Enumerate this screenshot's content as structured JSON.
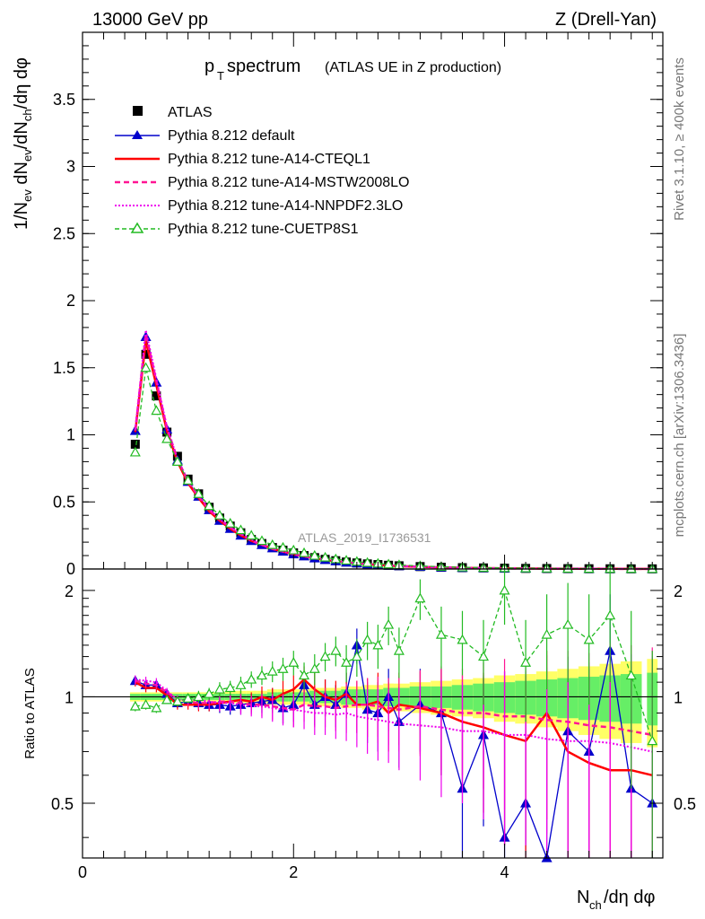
{
  "header": {
    "left": "13000 GeV pp",
    "right": "Z (Drell-Yan)"
  },
  "side_labels": {
    "rivet": "Rivet 3.1.10, ≥ 400k events",
    "mcplots": "mcplots.cern.ch [arXiv:1306.3436]"
  },
  "watermark": "ATLAS_2019_I1736531",
  "colors": {
    "atlas": "#000000",
    "default": "#0000cc",
    "cteql1": "#ff0000",
    "mstw": "#ff1493",
    "nnpdf": "#ee00ee",
    "cuetp": "#22bb22",
    "band_yellow": "#ffff66",
    "band_green": "#66ee66"
  },
  "chart_data": [
    {
      "type": "line",
      "title_main": "p",
      "title_sub": "T",
      "title_rest": " spectrum",
      "title_note": "(ATLAS UE in Z production)",
      "xlabel": "N",
      "xlabel_sub": "ch",
      "xlabel_rest": "/dη dφ",
      "ylabel": "1/N_ev dN_ev/dN_ch/dη dφ",
      "xlim": [
        0,
        5.5
      ],
      "ylim": [
        0,
        4.0
      ],
      "yticks": [
        "0",
        "0.5",
        "1",
        "1.5",
        "2",
        "2.5",
        "3",
        "3.5"
      ],
      "xticks": [
        "0",
        "2",
        "4"
      ],
      "legend": [
        "ATLAS",
        "Pythia 8.212 default",
        "Pythia 8.212 tune-A14-CTEQL1",
        "Pythia 8.212 tune-A14-MSTW2008LO",
        "Pythia 8.212 tune-A14-NNPDF2.3LO",
        "Pythia 8.212 tune-CUETP8S1"
      ],
      "x": [
        0.5,
        0.6,
        0.7,
        0.8,
        0.9,
        1.0,
        1.1,
        1.2,
        1.3,
        1.4,
        1.5,
        1.6,
        1.7,
        1.8,
        1.9,
        2.0,
        2.1,
        2.2,
        2.3,
        2.4,
        2.5,
        2.6,
        2.7,
        2.8,
        2.9,
        3.0,
        3.2,
        3.4,
        3.6,
        3.8,
        4.0,
        4.2,
        4.4,
        4.6,
        4.8,
        5.0,
        5.2,
        5.4
      ],
      "series": [
        {
          "name": "ATLAS",
          "values": [
            0.93,
            1.6,
            1.29,
            1.02,
            0.84,
            0.67,
            0.56,
            0.46,
            0.38,
            0.32,
            0.27,
            0.22,
            0.19,
            0.16,
            0.14,
            0.12,
            0.1,
            0.085,
            0.072,
            0.062,
            0.052,
            0.045,
            0.038,
            0.033,
            0.028,
            0.024,
            0.018,
            0.013,
            0.01,
            0.008,
            0.006,
            0.0045,
            0.0035,
            0.0027,
            0.002,
            0.0016,
            0.0012,
            0.001
          ]
        },
        {
          "name": "Pythia 8.212 default",
          "values": [
            1.03,
            1.73,
            1.39,
            1.04,
            0.81,
            0.65,
            0.54,
            0.44,
            0.36,
            0.3,
            0.25,
            0.21,
            0.18,
            0.155,
            0.13,
            0.11,
            0.095,
            0.08,
            0.068,
            0.058,
            0.049,
            0.043,
            0.036,
            0.031,
            0.026,
            0.022,
            0.017,
            0.012,
            0.009,
            0.007,
            0.005,
            0.004,
            0.003,
            0.0024,
            0.0018,
            0.0014,
            0.001,
            0.0008
          ]
        },
        {
          "name": "Pythia 8.212 tune-A14-CTEQL1",
          "values": [
            1.02,
            1.7,
            1.37,
            1.03,
            0.8,
            0.64,
            0.53,
            0.43,
            0.36,
            0.3,
            0.25,
            0.21,
            0.18,
            0.15,
            0.13,
            0.11,
            0.094,
            0.08,
            0.067,
            0.057,
            0.048,
            0.042,
            0.035,
            0.03,
            0.025,
            0.021,
            0.016,
            0.012,
            0.009,
            0.007,
            0.005,
            0.0038,
            0.003,
            0.0023,
            0.0017,
            0.0013,
            0.001,
            0.0008
          ]
        },
        {
          "name": "Pythia 8.212 tune-A14-MSTW2008LO",
          "values": [
            1.03,
            1.75,
            1.4,
            1.05,
            0.82,
            0.65,
            0.54,
            0.44,
            0.37,
            0.31,
            0.26,
            0.21,
            0.18,
            0.15,
            0.13,
            0.11,
            0.095,
            0.08,
            0.068,
            0.058,
            0.049,
            0.043,
            0.036,
            0.031,
            0.026,
            0.022,
            0.017,
            0.012,
            0.009,
            0.007,
            0.005,
            0.004,
            0.003,
            0.0024,
            0.0018,
            0.0014,
            0.001,
            0.0008
          ]
        },
        {
          "name": "Pythia 8.212 tune-A14-NNPDF2.3LO",
          "values": [
            1.04,
            1.78,
            1.42,
            1.06,
            0.82,
            0.66,
            0.55,
            0.45,
            0.37,
            0.31,
            0.26,
            0.22,
            0.18,
            0.155,
            0.13,
            0.11,
            0.096,
            0.081,
            0.069,
            0.059,
            0.05,
            0.043,
            0.036,
            0.031,
            0.026,
            0.022,
            0.017,
            0.012,
            0.009,
            0.007,
            0.005,
            0.004,
            0.003,
            0.0024,
            0.0018,
            0.0014,
            0.001,
            0.0008
          ]
        },
        {
          "name": "Pythia 8.212 tune-CUETP8S1",
          "values": [
            0.87,
            1.5,
            1.18,
            0.97,
            0.8,
            0.66,
            0.56,
            0.47,
            0.4,
            0.34,
            0.29,
            0.25,
            0.21,
            0.18,
            0.16,
            0.14,
            0.12,
            0.1,
            0.086,
            0.074,
            0.064,
            0.055,
            0.047,
            0.041,
            0.035,
            0.03,
            0.023,
            0.017,
            0.013,
            0.01,
            0.008,
            0.006,
            0.0045,
            0.0035,
            0.0027,
            0.002,
            0.0016,
            0.0012
          ]
        }
      ]
    },
    {
      "type": "line",
      "ylabel": "Ratio to ATLAS",
      "xlim": [
        0,
        5.5
      ],
      "ylim": [
        0.35,
        2.3
      ],
      "yticks": [
        "0.5",
        "1",
        "2"
      ],
      "yticks_right": [
        "0.5",
        "1",
        "2"
      ],
      "x": [
        0.5,
        0.6,
        0.7,
        0.8,
        0.9,
        1.0,
        1.1,
        1.2,
        1.3,
        1.4,
        1.5,
        1.6,
        1.7,
        1.8,
        1.9,
        2.0,
        2.1,
        2.2,
        2.3,
        2.4,
        2.5,
        2.6,
        2.7,
        2.8,
        2.9,
        3.0,
        3.2,
        3.4,
        3.6,
        3.8,
        4.0,
        4.2,
        4.4,
        4.6,
        4.8,
        5.0,
        5.2,
        5.4
      ],
      "band_green": [
        0.02,
        0.02,
        0.02,
        0.02,
        0.02,
        0.02,
        0.02,
        0.02,
        0.02,
        0.02,
        0.02,
        0.02,
        0.02,
        0.03,
        0.03,
        0.03,
        0.03,
        0.04,
        0.04,
        0.04,
        0.05,
        0.05,
        0.05,
        0.05,
        0.06,
        0.06,
        0.07,
        0.07,
        0.08,
        0.09,
        0.1,
        0.11,
        0.12,
        0.13,
        0.14,
        0.15,
        0.16,
        0.17
      ],
      "band_yellow": [
        0.03,
        0.03,
        0.03,
        0.03,
        0.03,
        0.03,
        0.03,
        0.03,
        0.03,
        0.04,
        0.04,
        0.04,
        0.04,
        0.05,
        0.05,
        0.05,
        0.05,
        0.06,
        0.06,
        0.06,
        0.07,
        0.07,
        0.08,
        0.08,
        0.09,
        0.09,
        0.1,
        0.11,
        0.12,
        0.13,
        0.15,
        0.16,
        0.18,
        0.2,
        0.22,
        0.24,
        0.26,
        0.28
      ],
      "series": [
        {
          "name": "Pythia 8.212 default",
          "values": [
            1.11,
            1.08,
            1.08,
            1.02,
            0.96,
            0.97,
            0.96,
            0.95,
            0.95,
            0.94,
            0.95,
            0.96,
            0.97,
            0.98,
            0.93,
            0.95,
            1.08,
            0.95,
            1.0,
            0.95,
            1.02,
            1.4,
            0.92,
            0.9,
            1.0,
            0.85,
            0.95,
            0.9,
            0.55,
            0.78,
            0.4,
            0.5,
            0.35,
            0.8,
            0.7,
            1.35,
            0.55,
            0.5
          ],
          "err": [
            0.03,
            0.03,
            0.03,
            0.02,
            0.03,
            0.03,
            0.04,
            0.04,
            0.05,
            0.05,
            0.06,
            0.06,
            0.07,
            0.08,
            0.09,
            0.1,
            0.1,
            0.12,
            0.12,
            0.13,
            0.15,
            0.16,
            0.18,
            0.2,
            0.2,
            0.22,
            0.25,
            0.3,
            0.3,
            0.35,
            0.4,
            0.4,
            0.45,
            0.5,
            0.5,
            0.6,
            0.6,
            0.6
          ]
        },
        {
          "name": "Pythia 8.212 tune-A14-CTEQL1",
          "values": [
            1.1,
            1.06,
            1.06,
            1.01,
            0.95,
            0.95,
            0.95,
            0.95,
            0.96,
            0.97,
            0.98,
            0.97,
            1.0,
            0.98,
            1.02,
            1.05,
            1.12,
            1.05,
            1.0,
            0.98,
            1.02,
            0.95,
            0.95,
            0.97,
            0.9,
            0.95,
            0.93,
            0.9,
            0.85,
            0.82,
            0.78,
            0.75,
            0.9,
            0.7,
            0.65,
            0.62,
            0.62,
            0.6
          ],
          "err": [
            0.03,
            0.03,
            0.03,
            0.02,
            0.03,
            0.03,
            0.04,
            0.04,
            0.05,
            0.05,
            0.06,
            0.06,
            0.07,
            0.08,
            0.09,
            0.1,
            0.1,
            0.12,
            0.12,
            0.13,
            0.15,
            0.16,
            0.18,
            0.2,
            0.2,
            0.22,
            0.25,
            0.3,
            0.3,
            0.35,
            0.4,
            0.4,
            0.45,
            0.5,
            0.5,
            0.6,
            0.6,
            0.6
          ]
        },
        {
          "name": "Pythia 8.212 tune-A14-MSTW2008LO",
          "values": [
            1.11,
            1.09,
            1.08,
            1.03,
            0.98,
            0.97,
            0.96,
            0.96,
            0.97,
            0.97,
            0.96,
            0.95,
            0.95,
            0.94,
            0.93,
            0.92,
            0.95,
            0.94,
            0.94,
            0.93,
            0.94,
            0.95,
            0.95,
            0.94,
            0.93,
            0.92,
            0.94,
            0.92,
            0.9,
            0.9,
            0.88,
            0.88,
            0.86,
            0.85,
            0.83,
            0.82,
            0.8,
            0.78
          ],
          "err": [
            0.03,
            0.03,
            0.03,
            0.02,
            0.03,
            0.03,
            0.04,
            0.04,
            0.05,
            0.05,
            0.06,
            0.06,
            0.07,
            0.08,
            0.09,
            0.1,
            0.1,
            0.12,
            0.12,
            0.13,
            0.15,
            0.16,
            0.18,
            0.2,
            0.2,
            0.22,
            0.25,
            0.3,
            0.3,
            0.35,
            0.4,
            0.4,
            0.45,
            0.5,
            0.5,
            0.6,
            0.6,
            0.6
          ]
        },
        {
          "name": "Pythia 8.212 tune-A14-NNPDF2.3LO",
          "values": [
            1.12,
            1.11,
            1.1,
            1.04,
            0.98,
            0.98,
            0.98,
            0.97,
            0.96,
            0.96,
            0.95,
            0.94,
            0.94,
            0.93,
            0.92,
            0.92,
            0.91,
            0.9,
            0.9,
            0.89,
            0.9,
            0.88,
            0.87,
            0.86,
            0.85,
            0.84,
            0.83,
            0.82,
            0.8,
            0.8,
            0.78,
            0.78,
            0.76,
            0.75,
            0.75,
            0.74,
            0.72,
            0.7
          ],
          "err": [
            0.03,
            0.03,
            0.03,
            0.02,
            0.03,
            0.03,
            0.04,
            0.04,
            0.05,
            0.05,
            0.06,
            0.06,
            0.07,
            0.08,
            0.09,
            0.1,
            0.1,
            0.12,
            0.12,
            0.13,
            0.15,
            0.16,
            0.18,
            0.2,
            0.2,
            0.22,
            0.25,
            0.3,
            0.3,
            0.35,
            0.4,
            0.4,
            0.45,
            0.5,
            0.5,
            0.6,
            0.6,
            0.6
          ]
        },
        {
          "name": "Pythia 8.212 tune-CUETP8S1",
          "values": [
            0.94,
            0.95,
            0.93,
            0.98,
            0.97,
            0.99,
            1.0,
            1.02,
            1.05,
            1.06,
            1.08,
            1.12,
            1.15,
            1.18,
            1.2,
            1.25,
            1.15,
            1.2,
            1.3,
            1.35,
            1.25,
            1.3,
            1.45,
            1.4,
            1.6,
            1.35,
            1.9,
            1.5,
            1.45,
            1.3,
            2.0,
            1.25,
            1.5,
            1.6,
            1.45,
            1.7,
            1.15,
            0.75
          ],
          "err": [
            0.03,
            0.03,
            0.03,
            0.02,
            0.03,
            0.03,
            0.04,
            0.04,
            0.05,
            0.05,
            0.06,
            0.06,
            0.07,
            0.08,
            0.09,
            0.1,
            0.1,
            0.12,
            0.12,
            0.13,
            0.15,
            0.16,
            0.18,
            0.2,
            0.2,
            0.22,
            0.25,
            0.3,
            0.3,
            0.35,
            0.4,
            0.4,
            0.45,
            0.5,
            0.5,
            0.6,
            0.6,
            0.6
          ]
        }
      ]
    }
  ]
}
